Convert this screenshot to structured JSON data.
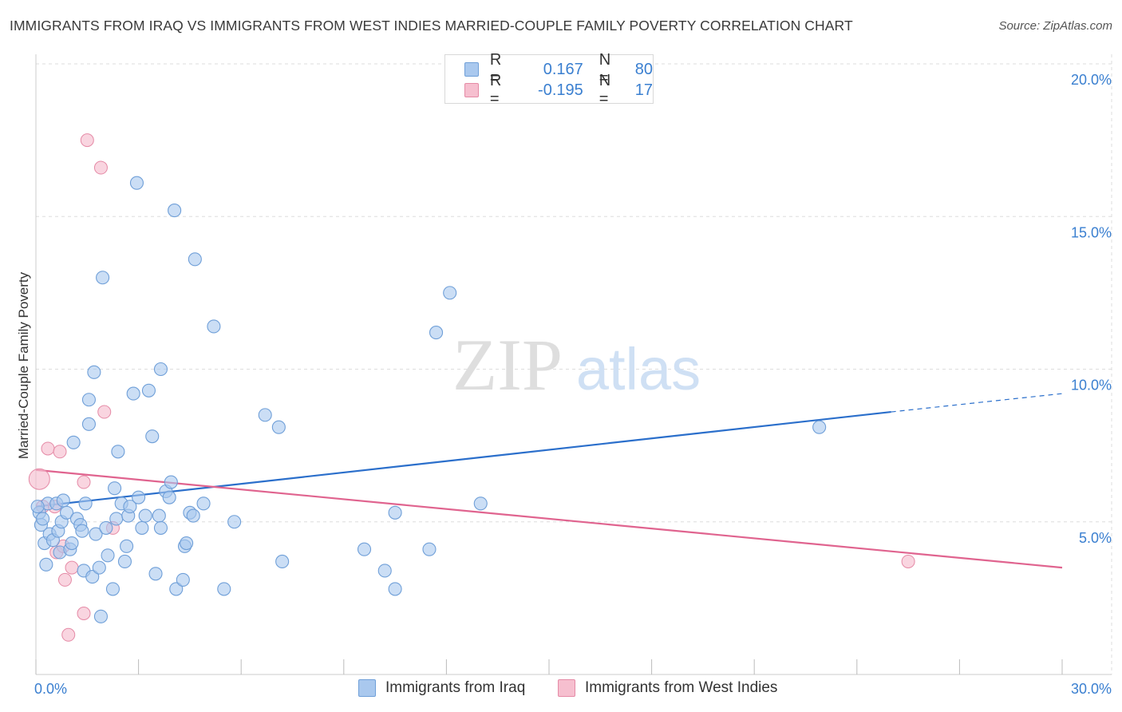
{
  "header": {
    "title": "IMMIGRANTS FROM IRAQ VS IMMIGRANTS FROM WEST INDIES MARRIED-COUPLE FAMILY POVERTY CORRELATION CHART",
    "source": "Source: ZipAtlas.com"
  },
  "watermark": {
    "zip": "ZIP",
    "atlas": "atlas"
  },
  "stats": {
    "r_label": "R =",
    "n_label": "N =",
    "rows": [
      {
        "r": "0.167",
        "n": "80"
      },
      {
        "r": "-0.195",
        "n": "17"
      }
    ]
  },
  "legend": {
    "items": [
      "Immigrants from Iraq",
      "Immigrants from West Indies"
    ]
  },
  "colors": {
    "series1_fill": "#a9c8ee",
    "series1_stroke": "#6f9fd8",
    "series1_line": "#2b6fcb",
    "series2_fill": "#f6bfcf",
    "series2_stroke": "#e58aa6",
    "series2_line": "#e0648f",
    "axis_label": "#3a7fd0",
    "grid": "#dddddd"
  },
  "chart_data": {
    "type": "scatter",
    "title": "IMMIGRANTS FROM IRAQ VS IMMIGRANTS FROM WEST INDIES MARRIED-COUPLE FAMILY POVERTY CORRELATION CHART",
    "ylabel": "Married-Couple Family Poverty",
    "xlabel": "",
    "xlim": [
      0,
      30
    ],
    "ylim": [
      0,
      20
    ],
    "x_tick_labels": [
      {
        "value": 0,
        "label": "0.0%"
      },
      {
        "value": 30,
        "label": "30.0%"
      }
    ],
    "x_minor_ticks": [
      3,
      6,
      9,
      12,
      15,
      18,
      21,
      24,
      27
    ],
    "y_tick_labels": [
      {
        "value": 5,
        "label": "5.0%"
      },
      {
        "value": 10,
        "label": "10.0%"
      },
      {
        "value": 15,
        "label": "15.0%"
      },
      {
        "value": 20,
        "label": "20.0%"
      }
    ],
    "grid": true,
    "legend_position": "bottom",
    "series": [
      {
        "name": "Immigrants from Iraq",
        "trend": {
          "x0": 0,
          "y0": 5.5,
          "x1": 25,
          "y1": 8.6,
          "dash_to_x": 30,
          "dash_to_y": 9.2
        },
        "points": [
          [
            0.1,
            5.3
          ],
          [
            0.15,
            4.9
          ],
          [
            0.2,
            5.1
          ],
          [
            0.25,
            4.3
          ],
          [
            0.3,
            3.6
          ],
          [
            0.35,
            5.6
          ],
          [
            0.4,
            4.6
          ],
          [
            0.5,
            4.4
          ],
          [
            0.6,
            5.6
          ],
          [
            0.65,
            4.7
          ],
          [
            0.7,
            4.0
          ],
          [
            0.75,
            5.0
          ],
          [
            0.8,
            5.7
          ],
          [
            0.9,
            5.3
          ],
          [
            1.0,
            4.1
          ],
          [
            1.05,
            4.3
          ],
          [
            1.1,
            7.6
          ],
          [
            1.2,
            5.1
          ],
          [
            1.3,
            4.9
          ],
          [
            1.35,
            4.7
          ],
          [
            1.4,
            3.4
          ],
          [
            1.45,
            5.6
          ],
          [
            1.55,
            8.2
          ],
          [
            1.55,
            9.0
          ],
          [
            1.65,
            3.2
          ],
          [
            1.7,
            9.9
          ],
          [
            1.75,
            4.6
          ],
          [
            1.85,
            3.5
          ],
          [
            1.9,
            1.9
          ],
          [
            1.95,
            13.0
          ],
          [
            2.05,
            4.8
          ],
          [
            2.1,
            3.9
          ],
          [
            2.25,
            2.8
          ],
          [
            2.3,
            6.1
          ],
          [
            2.35,
            5.1
          ],
          [
            2.4,
            7.3
          ],
          [
            2.5,
            5.6
          ],
          [
            2.6,
            3.7
          ],
          [
            2.65,
            4.2
          ],
          [
            2.7,
            5.2
          ],
          [
            2.75,
            5.5
          ],
          [
            2.85,
            9.2
          ],
          [
            2.95,
            16.1
          ],
          [
            3.0,
            5.8
          ],
          [
            3.1,
            4.8
          ],
          [
            3.2,
            5.2
          ],
          [
            3.3,
            9.3
          ],
          [
            3.4,
            7.8
          ],
          [
            3.5,
            3.3
          ],
          [
            3.6,
            5.2
          ],
          [
            3.65,
            10.0
          ],
          [
            3.65,
            4.8
          ],
          [
            3.8,
            6.0
          ],
          [
            3.9,
            5.8
          ],
          [
            3.95,
            6.3
          ],
          [
            4.05,
            15.2
          ],
          [
            4.1,
            2.8
          ],
          [
            4.3,
            3.1
          ],
          [
            4.35,
            4.2
          ],
          [
            4.4,
            4.3
          ],
          [
            4.5,
            5.3
          ],
          [
            4.6,
            5.2
          ],
          [
            4.65,
            13.6
          ],
          [
            4.9,
            5.6
          ],
          [
            5.2,
            11.4
          ],
          [
            5.5,
            2.8
          ],
          [
            5.8,
            5.0
          ],
          [
            6.7,
            8.5
          ],
          [
            7.1,
            8.1
          ],
          [
            7.2,
            3.7
          ],
          [
            9.6,
            4.1
          ],
          [
            10.2,
            3.4
          ],
          [
            10.5,
            5.3
          ],
          [
            10.5,
            2.8
          ],
          [
            11.5,
            4.1
          ],
          [
            11.7,
            11.2
          ],
          [
            12.1,
            12.5
          ],
          [
            13.0,
            5.6
          ],
          [
            22.9,
            8.1
          ],
          [
            0.05,
            5.5
          ]
        ]
      },
      {
        "name": "Immigrants from West Indies",
        "trend": {
          "x0": 0,
          "y0": 6.7,
          "x1": 30,
          "y1": 3.5
        },
        "points": [
          [
            0.1,
            6.4
          ],
          [
            0.2,
            5.5
          ],
          [
            0.35,
            7.4
          ],
          [
            0.55,
            5.5
          ],
          [
            0.6,
            4.0
          ],
          [
            0.7,
            7.3
          ],
          [
            0.8,
            4.2
          ],
          [
            0.85,
            3.1
          ],
          [
            0.95,
            1.3
          ],
          [
            1.05,
            3.5
          ],
          [
            1.4,
            6.3
          ],
          [
            1.4,
            2.0
          ],
          [
            1.5,
            17.5
          ],
          [
            1.9,
            16.6
          ],
          [
            2.0,
            8.6
          ],
          [
            2.25,
            4.8
          ],
          [
            25.5,
            3.7
          ]
        ]
      }
    ],
    "extra_points_note": ""
  }
}
